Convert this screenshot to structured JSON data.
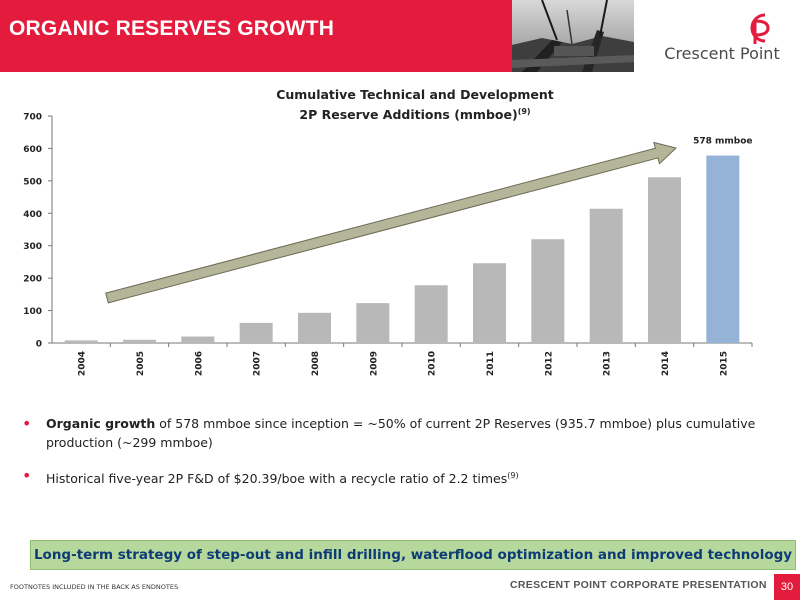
{
  "header": {
    "title": "ORGANIC RESERVES GROWTH",
    "logo_text": "Crescent Point"
  },
  "colors": {
    "brand_red": "#e31b3c",
    "bar_gray": "#b8b8b8",
    "bar_highlight": "#95b3d7",
    "arrow_fill": "#b5b59a",
    "banner_green": "#b6d89c",
    "banner_text": "#0d3b75"
  },
  "chart_data": {
    "type": "bar",
    "title_line1": "Cumulative Technical and Development",
    "title_line2": "2P Reserve Additions (mmboe)",
    "title_sup": "(9)",
    "categories": [
      "2004",
      "2005",
      "2006",
      "2007",
      "2008",
      "2009",
      "2010",
      "2011",
      "2012",
      "2013",
      "2014",
      "2015"
    ],
    "values": [
      8,
      10,
      20,
      62,
      93,
      123,
      178,
      246,
      320,
      414,
      511,
      578
    ],
    "highlight_index": 11,
    "ylim": [
      0,
      700
    ],
    "yticks": [
      "0",
      "100",
      "200",
      "300",
      "400",
      "500",
      "600",
      "700"
    ],
    "annotation": "578 mmboe",
    "grid": false,
    "legend": "none"
  },
  "bullets": [
    {
      "bold": "Organic growth",
      "text": " of 578 mmboe since inception = ~50% of current 2P Reserves (935.7 mmboe) plus cumulative production (~299 mmboe)",
      "sup": ""
    },
    {
      "bold": "",
      "text": "Historical five-year 2P F&D of $20.39/boe with a recycle ratio of 2.2 times",
      "sup": "(9)"
    }
  ],
  "banner": "Long-term strategy of step-out and infill drilling, waterflood optimization and improved technology",
  "footer": {
    "footnote": "FOOTNOTES INCLUDED IN THE BACK AS ENDNOTES",
    "label": "CRESCENT POINT CORPORATE PRESENTATION",
    "page": "30"
  }
}
